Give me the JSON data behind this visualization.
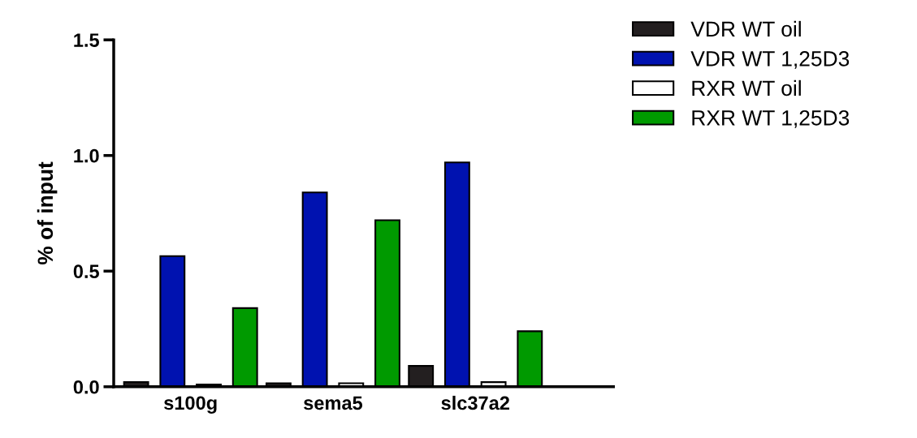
{
  "chart_data": {
    "type": "bar",
    "ylabel": "% of input",
    "categories": [
      "s100g",
      "sema5",
      "slc37a2"
    ],
    "series": [
      {
        "name": "VDR WT oil",
        "color": "#231f20",
        "values": [
          0.02,
          0.015,
          0.09
        ]
      },
      {
        "name": "VDR WT 1,25D3",
        "color": "#0012b0",
        "values": [
          0.565,
          0.84,
          0.97
        ]
      },
      {
        "name": "RXR WT oil",
        "color": "#ffffff",
        "values": [
          0.01,
          0.015,
          0.02
        ]
      },
      {
        "name": "RXR WT 1,25D3",
        "color": "#009a00",
        "values": [
          0.34,
          0.72,
          0.24
        ]
      }
    ],
    "ylim": [
      0,
      1.5
    ],
    "yticks": [
      {
        "value": 0,
        "label": "0.0"
      },
      {
        "value": 0.5,
        "label": "0.5"
      },
      {
        "value": 1,
        "label": "1.0"
      },
      {
        "value": 1.5,
        "label": "1.5"
      }
    ],
    "grid": false,
    "legend": "top right"
  }
}
